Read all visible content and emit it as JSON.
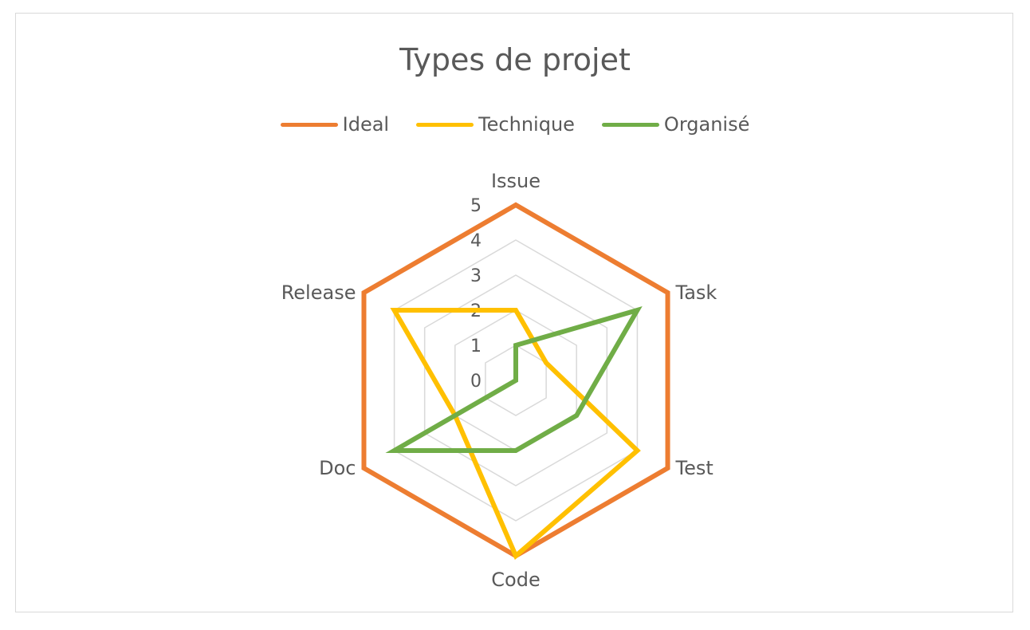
{
  "chart_data": {
    "type": "radar",
    "title": "Types de projet",
    "categories": [
      "Issue",
      "Task",
      "Test",
      "Code",
      "Doc",
      "Release"
    ],
    "rlim": [
      0,
      5
    ],
    "ticks": [
      "0",
      "1",
      "2",
      "3",
      "4",
      "5"
    ],
    "grid": true,
    "legend_position": "top",
    "series": [
      {
        "name": "Ideal",
        "color": "#ED7D31",
        "values": [
          5,
          5,
          5,
          5,
          5,
          5
        ]
      },
      {
        "name": "Technique",
        "color": "#FFC000",
        "values": [
          2,
          1,
          4,
          5,
          2,
          4
        ]
      },
      {
        "name": "Organisé",
        "color": "#70AD47",
        "values": [
          1,
          4,
          2,
          2,
          4,
          0
        ]
      }
    ]
  }
}
